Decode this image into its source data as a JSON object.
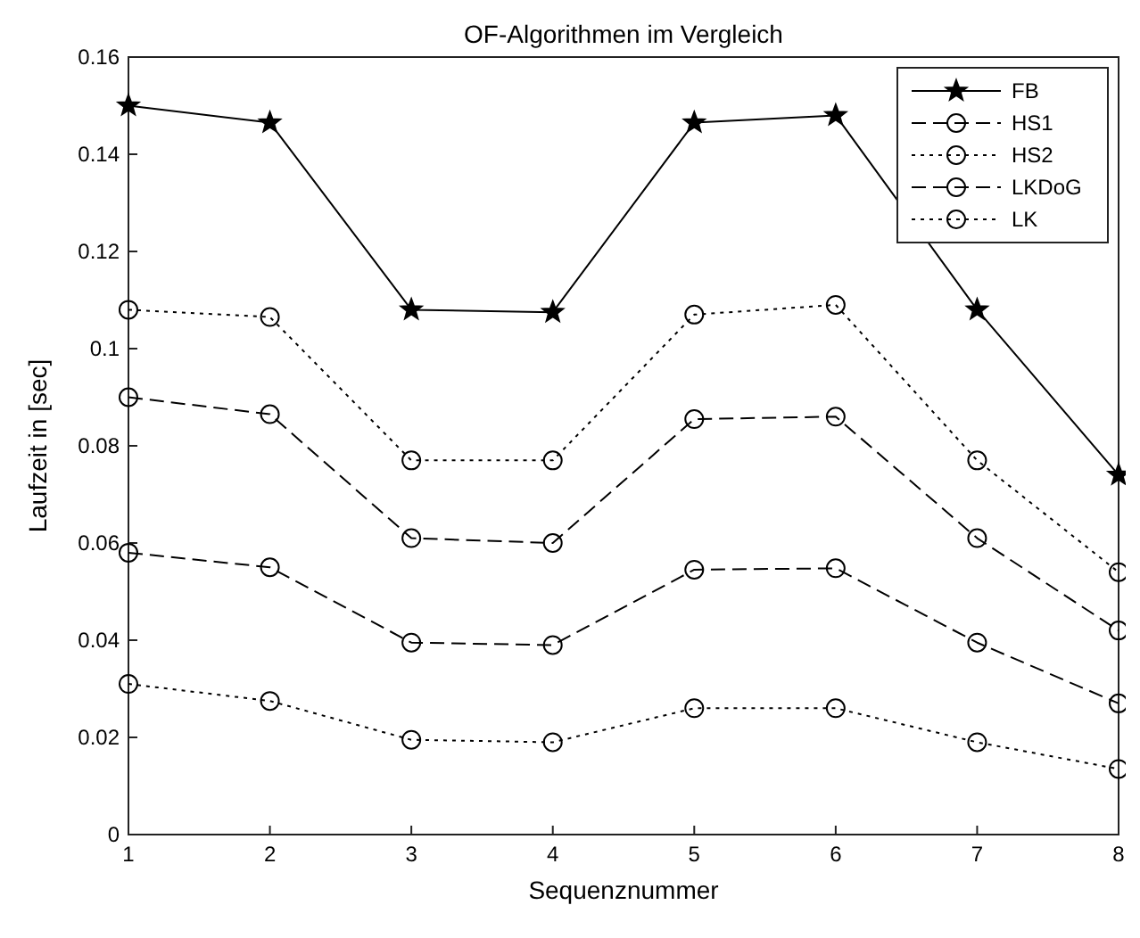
{
  "chart_data": {
    "type": "line",
    "title": "OF-Algorithmen im Vergleich",
    "xlabel": "Sequenznummer",
    "ylabel": "Laufzeit in [sec]",
    "x": [
      1,
      2,
      3,
      4,
      5,
      6,
      7,
      8
    ],
    "xlim": [
      1,
      8
    ],
    "xticks": [
      1,
      2,
      3,
      4,
      5,
      6,
      7,
      8
    ],
    "ylim": [
      0,
      0.16
    ],
    "yticks": [
      0,
      0.02,
      0.04,
      0.06,
      0.08,
      0.1,
      0.12,
      0.14,
      0.16
    ],
    "legend": "top right",
    "grid": false,
    "series": [
      {
        "name": "FB",
        "color": "#000000",
        "marker": "star",
        "line_style": "solid",
        "values": [
          0.15,
          0.1465,
          0.108,
          0.1075,
          0.1465,
          0.148,
          0.108,
          0.074
        ]
      },
      {
        "name": "HS1",
        "color": "#000000",
        "marker": "circle",
        "line_style": "dashed",
        "values": [
          0.058,
          0.055,
          0.0395,
          0.039,
          0.0545,
          0.0548,
          0.0395,
          0.027
        ]
      },
      {
        "name": "HS2",
        "color": "#000000",
        "marker": "circle",
        "line_style": "dotted",
        "values": [
          0.108,
          0.1065,
          0.077,
          0.077,
          0.107,
          0.109,
          0.077,
          0.054
        ]
      },
      {
        "name": "LKDoG",
        "color": "#000000",
        "marker": "circle",
        "line_style": "dashed",
        "values": [
          0.09,
          0.0865,
          0.061,
          0.06,
          0.0855,
          0.086,
          0.061,
          0.042
        ]
      },
      {
        "name": "LK",
        "color": "#000000",
        "marker": "circle",
        "line_style": "dotted",
        "values": [
          0.031,
          0.0275,
          0.0195,
          0.019,
          0.026,
          0.026,
          0.019,
          0.0135
        ]
      }
    ]
  }
}
